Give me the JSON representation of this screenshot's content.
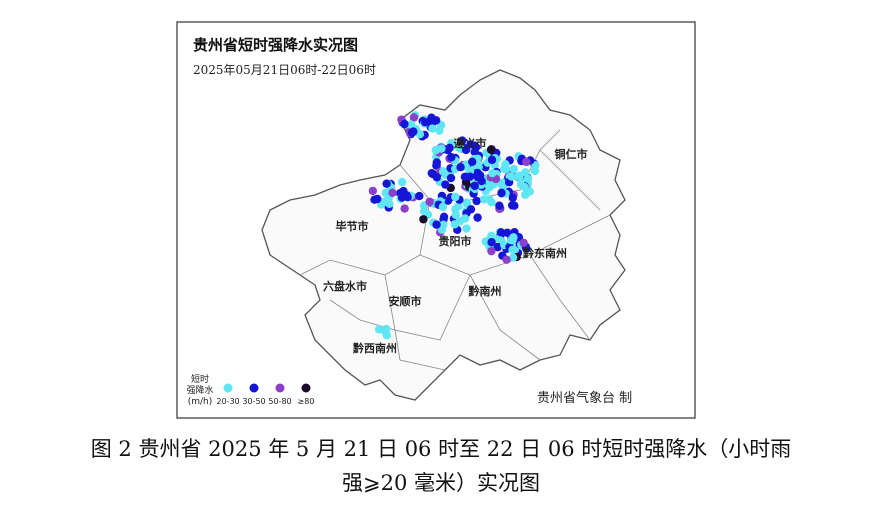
{
  "header": {
    "title": "贵州省短时强降水实况图",
    "subtitle": "2025年05月21日06时-22日06时"
  },
  "map": {
    "labels": [
      "遵义市",
      "铜仁市",
      "毕节市",
      "贵阳市",
      "黔东南州",
      "六盘水市",
      "安顺市",
      "黔南州",
      "黔西南州"
    ]
  },
  "legend": {
    "title": [
      "短时",
      "强降水",
      "(m/h)"
    ],
    "items": [
      {
        "label": "20-30",
        "color": "#5fe6f2"
      },
      {
        "label": "30-50",
        "color": "#1616d6"
      },
      {
        "label": "50-80",
        "color": "#8c3fc9"
      },
      {
        "label": "≥80",
        "color": "#1c0c2c"
      }
    ]
  },
  "credit": "贵州省气象台 制",
  "caption": [
    "图 2   贵州省 2025 年 5 月 21 日 06 时至 22 日 06 时短时强降水（小时雨",
    "强⩾20 毫米）实况图"
  ]
}
